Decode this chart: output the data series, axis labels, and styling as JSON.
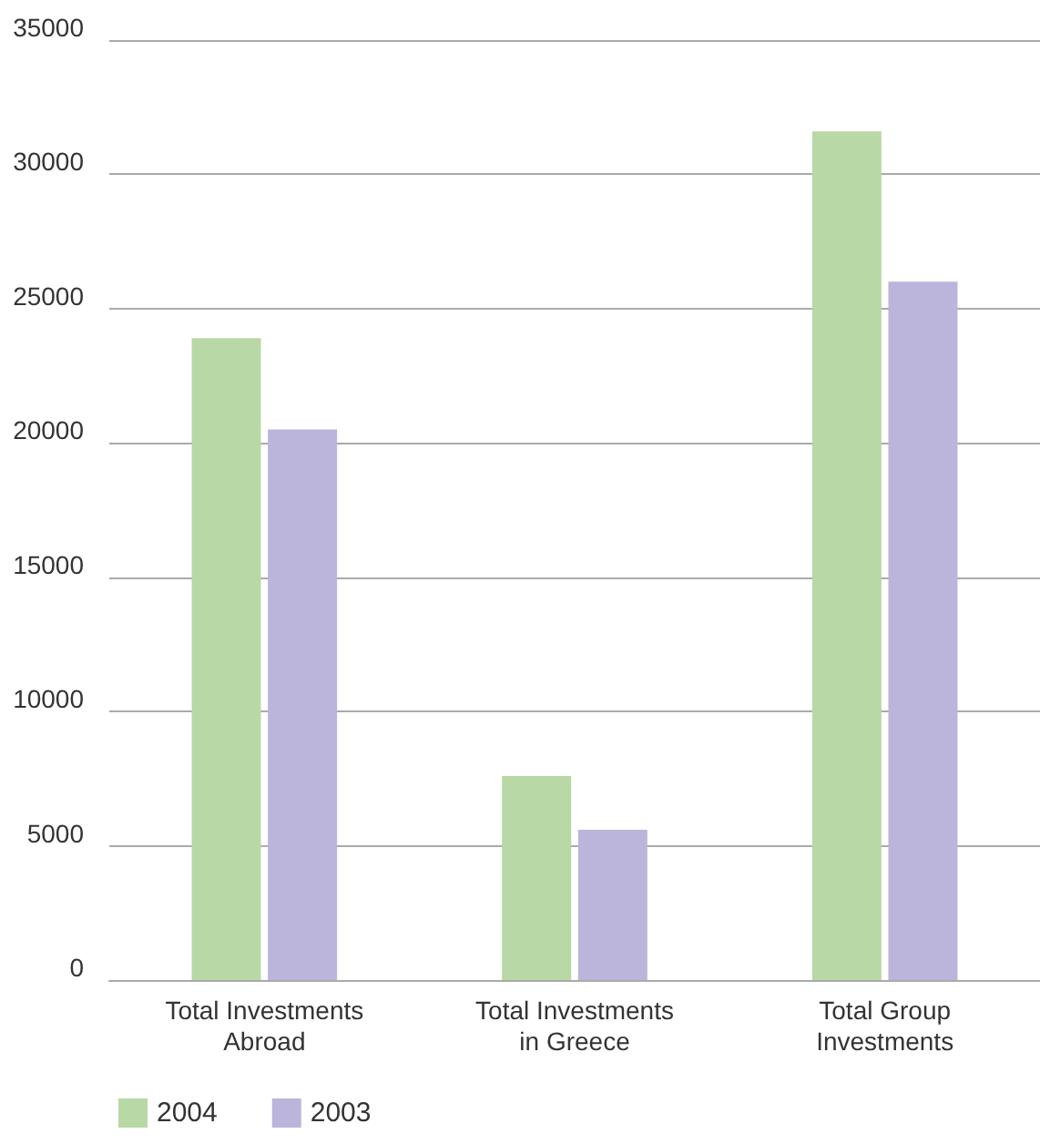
{
  "chart_data": {
    "type": "bar",
    "categories": [
      "Total Investments\nAbroad",
      "Total Investments\nin Greece",
      "Total Group\nInvestments"
    ],
    "series": [
      {
        "name": "2004",
        "color": "#b8d8a6",
        "values": [
          23900,
          7600,
          31600
        ]
      },
      {
        "name": "2003",
        "color": "#bbb5dc",
        "values": [
          20500,
          5600,
          26000
        ]
      }
    ],
    "ylim": [
      0,
      35000
    ],
    "yticks": [
      0,
      5000,
      10000,
      15000,
      20000,
      25000,
      30000,
      35000
    ],
    "grid": "y",
    "legend": "bottom left"
  }
}
